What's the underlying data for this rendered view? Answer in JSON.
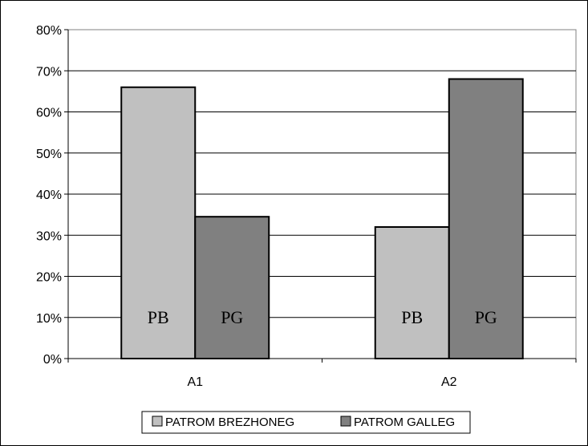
{
  "chart_data": {
    "type": "bar",
    "categories": [
      "A1",
      "A2"
    ],
    "series": [
      {
        "name": "PATROM BREZHONEG",
        "values": [
          0.66,
          0.32
        ],
        "bar_label": "PB",
        "color": "#c0c0c0"
      },
      {
        "name": "PATROM GALLEG",
        "values": [
          0.345,
          0.68
        ],
        "bar_label": "PG",
        "color": "#808080"
      }
    ],
    "ylim": [
      0,
      0.8
    ],
    "yticks": [
      0,
      0.1,
      0.2,
      0.3,
      0.4,
      0.5,
      0.6,
      0.7,
      0.8
    ],
    "ytick_labels": [
      "0%",
      "10%",
      "20%",
      "30%",
      "40%",
      "50%",
      "60%",
      "70%",
      "80%"
    ],
    "grid": true,
    "legend_position": "bottom",
    "title": "",
    "xlabel": "",
    "ylabel": ""
  }
}
